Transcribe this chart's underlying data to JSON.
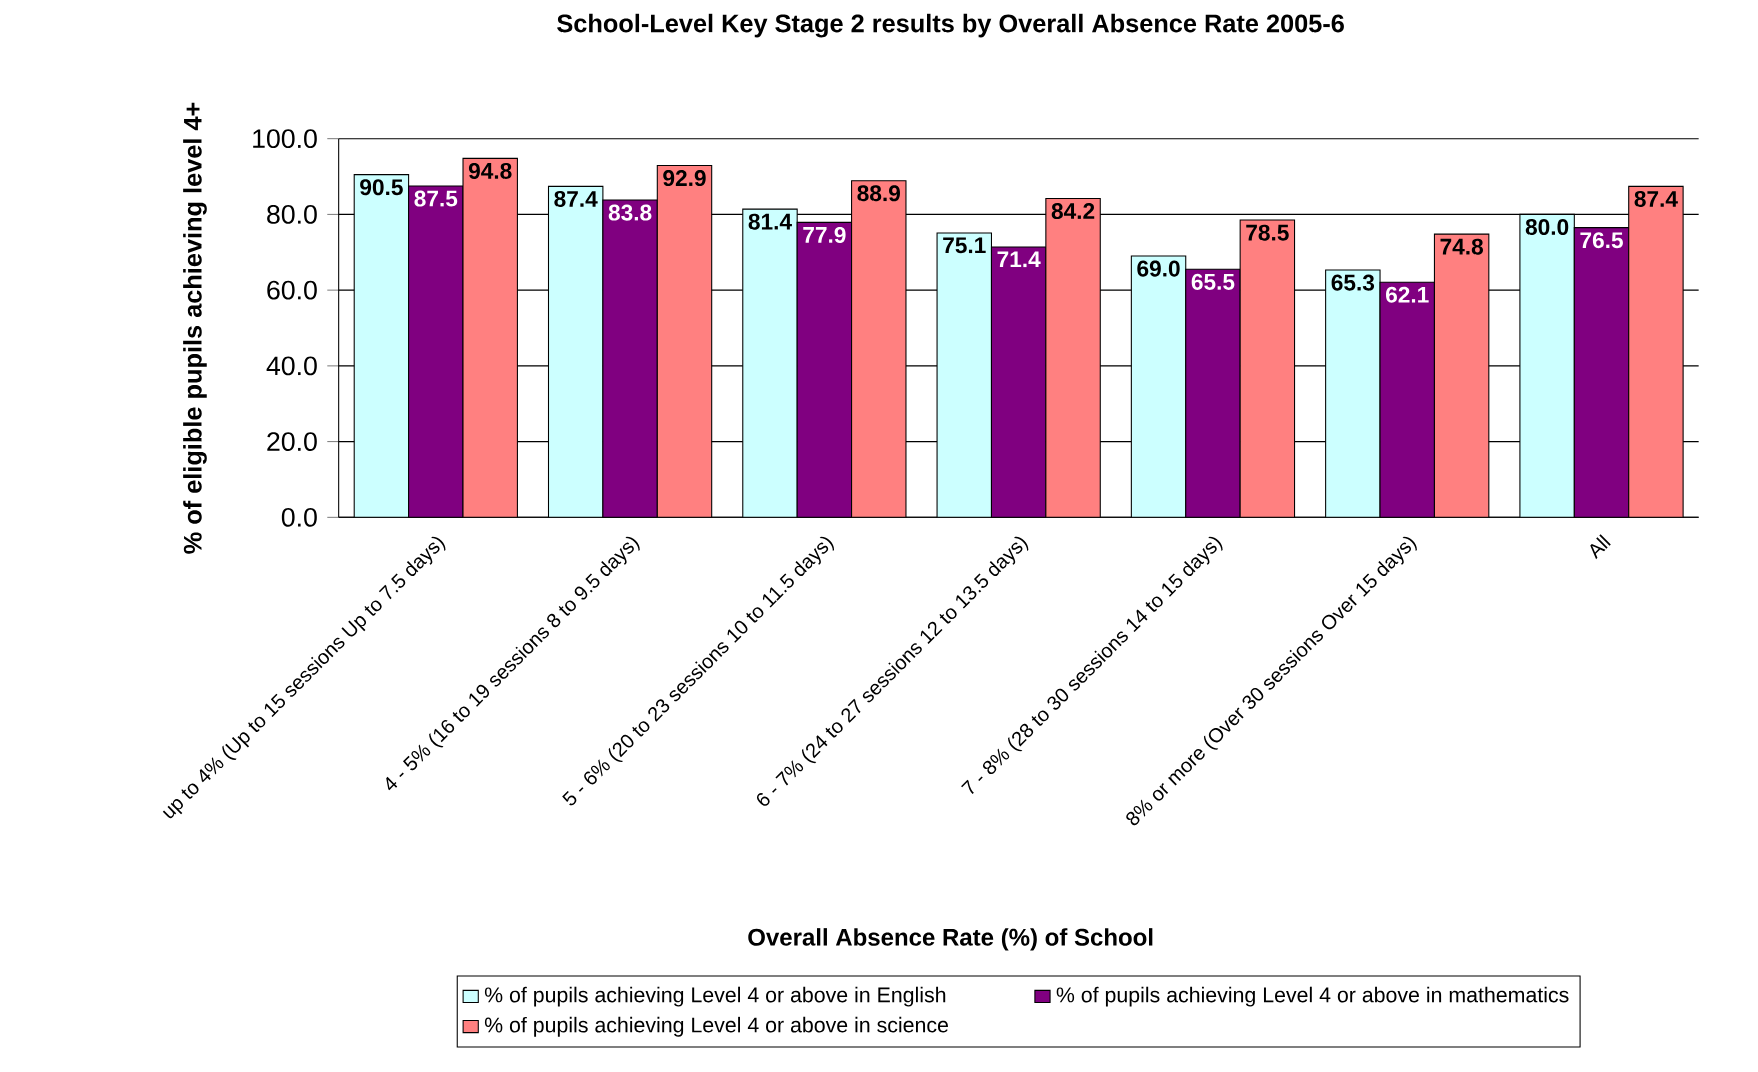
{
  "chart_data": {
    "type": "bar",
    "title": "School-Level Key Stage 2 results by Overall Absence Rate 2005-6",
    "xlabel": "Overall Absence Rate (%) of School",
    "ylabel": "% of eligible pupils achieving level 4+",
    "categories": [
      "up to 4% (Up to 15 sessions Up to 7.5 days)",
      "4 - 5% (16 to 19 sessions 8 to 9.5 days)",
      "5 - 6% (20 to 23 sessions 10 to 11.5 days)",
      "6 - 7% (24 to 27 sessions 12 to 13.5 days)",
      "7 - 8% (28 to 30 sessions 14 to 15 days)",
      "8% or more (Over 30 sessions Over 15 days)",
      "All"
    ],
    "series": [
      {
        "name": "% of pupils achieving Level 4 or above in English",
        "color": "#ccffff",
        "values": [
          90.5,
          87.4,
          81.4,
          75.1,
          69.0,
          65.3,
          80.0
        ],
        "value_labels": [
          "90.5",
          "87.4",
          "81.4",
          "75.1",
          "69.0",
          "65.3",
          "80.0"
        ]
      },
      {
        "name": "% of pupils achieving Level 4 or above in mathematics",
        "color": "#800080",
        "values": [
          87.5,
          83.8,
          77.9,
          71.4,
          65.5,
          62.1,
          76.5
        ],
        "value_labels": [
          "87.5",
          "83.8",
          "77.9",
          "71.4",
          "65.5",
          "62.1",
          "76.5"
        ]
      },
      {
        "name": "% of pupils achieving Level 4 or above in science",
        "color": "#ff8080",
        "values": [
          94.8,
          92.9,
          88.9,
          84.2,
          78.5,
          74.8,
          87.4
        ],
        "value_labels": [
          "94.8",
          "92.9",
          "88.9",
          "84.2",
          "78.5",
          "74.8",
          "87.4"
        ]
      }
    ],
    "ylim": [
      0,
      100
    ],
    "yticks": [
      {
        "value": 0,
        "label": "0.0"
      },
      {
        "value": 20,
        "label": "20.0"
      },
      {
        "value": 40,
        "label": "40.0"
      },
      {
        "value": 60,
        "label": "60.0"
      },
      {
        "value": 80,
        "label": "80.0"
      },
      {
        "value": 100,
        "label": "100.0"
      }
    ],
    "grid": "y",
    "legend": "bottom"
  }
}
